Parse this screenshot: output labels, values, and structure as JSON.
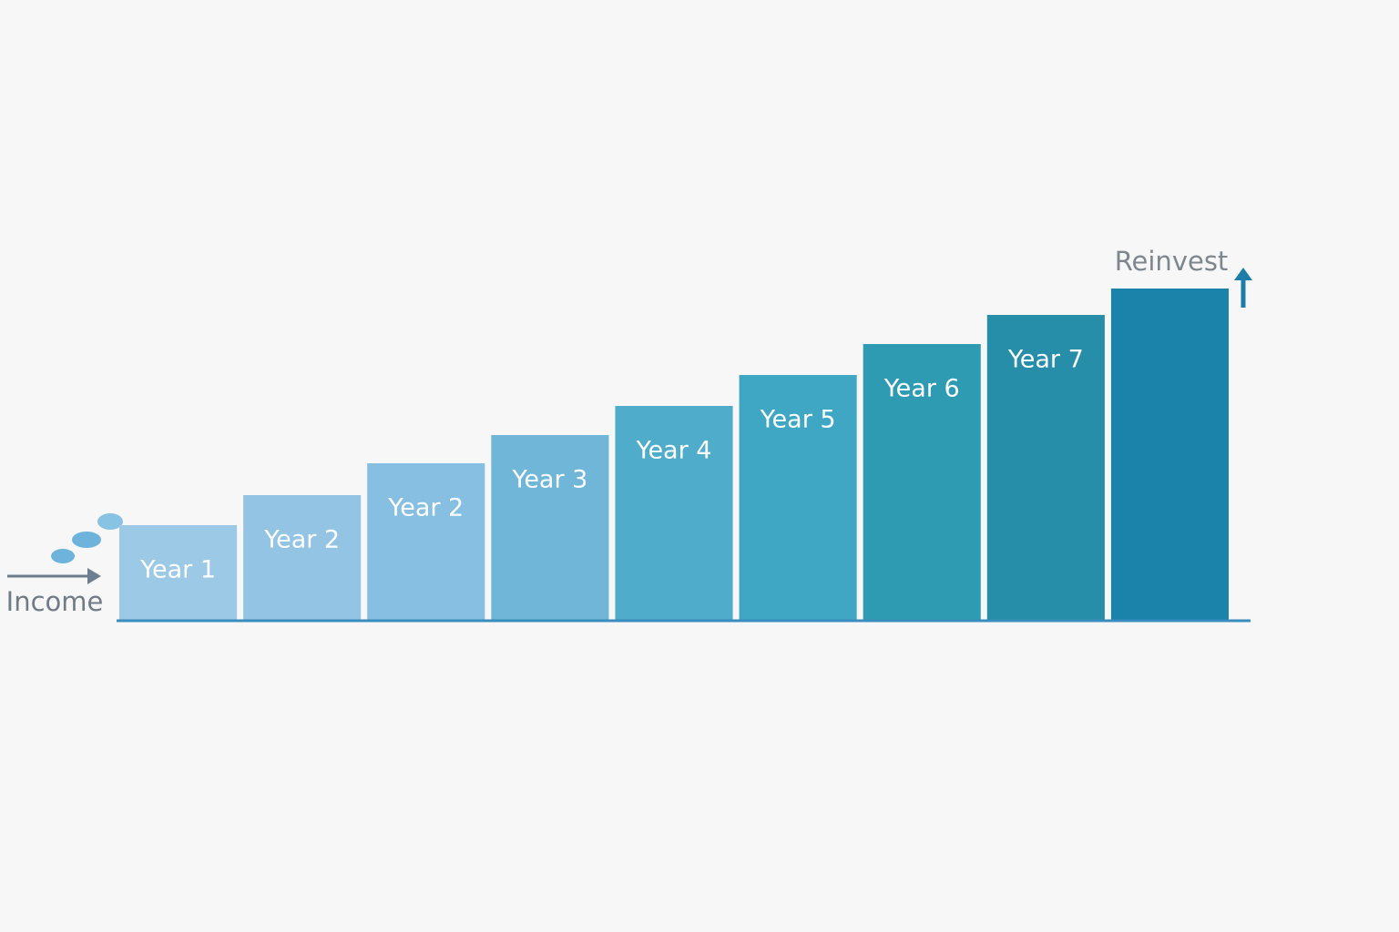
{
  "chart_data": {
    "type": "bar",
    "categories": [
      "Year 1",
      "Year 2",
      "Year 2",
      "Year 3",
      "Year 4",
      "Year 5",
      "Year 6",
      "Year 7",
      null
    ],
    "values": [
      104,
      137,
      172,
      203,
      235,
      269,
      303,
      335,
      364
    ],
    "colors": [
      "#9cc9e6",
      "#93c4e4",
      "#86bfe2",
      "#6fb6d9",
      "#4fadcb",
      "#3fa7c4",
      "#2f9bb3",
      "#268ea9",
      "#1b83aa"
    ],
    "ylim": [
      0,
      400
    ],
    "annotations": [
      "Income",
      "Reinvest"
    ]
  }
}
